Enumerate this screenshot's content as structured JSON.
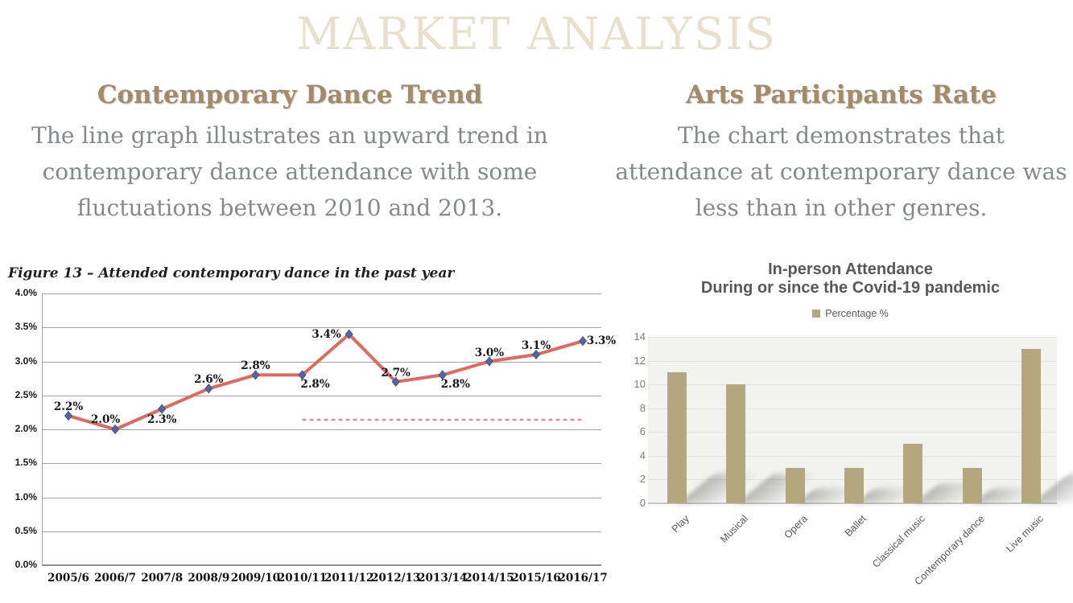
{
  "page_title": "MARKET ANALYSIS",
  "left_section": {
    "heading": "Contemporary Dance Trend",
    "body": "The line graph illustrates an upward trend in\ncontemporary dance attendance with some\nfluctuations between 2010 and 2013.",
    "figure_caption": "Figure 13 – Attended contemporary dance in the past year"
  },
  "right_section": {
    "heading": "Arts Participants Rate",
    "body": "The chart demonstrates that\nattendance at contemporary dance was\nless than in other genres."
  },
  "colors": {
    "title_cream": "#e8e0cb",
    "heading_tan": "#a28b68",
    "body_gray": "#85888f",
    "line_salmon": "#e0695d",
    "marker_blue": "#5465a6",
    "dashed_pink": "#de9094",
    "bar_tan": "#b4a77d"
  },
  "chart_data": [
    {
      "id": "contemporary-dance-line",
      "type": "line",
      "title": "Figure 13 – Attended contemporary dance in the past year",
      "categories": [
        "2005/6",
        "2006/7",
        "2007/8",
        "2008/9",
        "2009/10",
        "2010/11",
        "2011/12",
        "2012/13",
        "2013/14",
        "2014/15",
        "2015/16",
        "2016/17"
      ],
      "values": [
        2.2,
        2.0,
        2.3,
        2.6,
        2.8,
        2.8,
        3.4,
        2.7,
        2.8,
        3.0,
        3.1,
        3.3
      ],
      "point_labels": [
        "2.2%",
        "2.0%",
        "2.3%",
        "2.6%",
        "2.8%",
        "2.8%",
        "3.4%",
        "2.7%",
        "2.8%",
        "3.0%",
        "3.1%",
        "3.3%"
      ],
      "label_pos": [
        "above",
        "above-left",
        "below",
        "above",
        "above",
        "below-right",
        "left",
        "above",
        "below-right",
        "above",
        "above",
        "right"
      ],
      "ylabel": "",
      "xlabel": "",
      "ylim": [
        0,
        4
      ],
      "yticks": [
        "4.0%",
        "3.5%",
        "3.0%",
        "2.5%",
        "2.0%",
        "1.5%",
        "1.0%",
        "0.5%",
        "0.0%"
      ],
      "grid": true,
      "line_color": "#e0695d",
      "marker": "diamond",
      "marker_color": "#5465a6",
      "reference_line": {
        "y": 2.14,
        "from_index": 5,
        "to_index": 11,
        "style": "dashed",
        "color": "#de9094"
      }
    },
    {
      "id": "covid-attendance-bar",
      "type": "bar",
      "title": "In-person Attendance\nDuring or since the Covid-19 pandemic",
      "legend": [
        {
          "label": "Percentage %",
          "color": "#b4a77d",
          "position": "top-center"
        }
      ],
      "categories": [
        "Play",
        "Musical",
        "Opera",
        "Ballet",
        "Classical music",
        "Contemporary dance",
        "Live music"
      ],
      "values": [
        11,
        10,
        3,
        3,
        5,
        3,
        13
      ],
      "ylabel": "",
      "xlabel": "",
      "ylim": [
        0,
        14
      ],
      "yticks": [
        14,
        12,
        10,
        8,
        6,
        4,
        2,
        0
      ],
      "grid": true,
      "bar_color": "#b4a77d",
      "plot_background": "#f2f2f1"
    }
  ]
}
